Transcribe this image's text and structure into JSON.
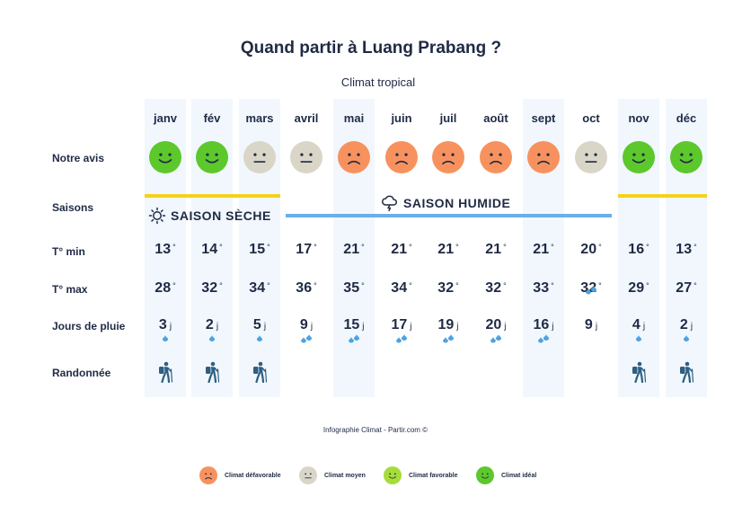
{
  "title": "Quand partir à Luang Prabang ?",
  "subtitle": "Climat tropical",
  "row_labels": {
    "avis": "Notre avis",
    "saisons": "Saisons",
    "tmin": "T° min",
    "tmax": "T° max",
    "pluie": "Jours de pluie",
    "rando": "Randonnée"
  },
  "seasons": {
    "dry": "SAISON SÈCHE",
    "wet": "SAISON HUMIDE"
  },
  "units": {
    "temp": "°",
    "days": "j"
  },
  "colors": {
    "defavorable": "#f7925e",
    "moyen": "#d9d6c8",
    "favorable": "#a6dc3a",
    "ideal": "#5cc82c",
    "dry_line": "#f4d21e",
    "wet_line": "#6aaeea",
    "drop": "#4ba3e3",
    "hiker": "#2f5f82"
  },
  "chart_data": {
    "type": "table",
    "months": [
      "janv",
      "fév",
      "mars",
      "avril",
      "mai",
      "juin",
      "juil",
      "août",
      "sept",
      "oct",
      "nov",
      "déc"
    ],
    "avis": [
      "ideal",
      "ideal",
      "moyen",
      "moyen",
      "defavorable",
      "defavorable",
      "defavorable",
      "defavorable",
      "defavorable",
      "moyen",
      "ideal",
      "ideal"
    ],
    "season": [
      "dry",
      "dry",
      "dry",
      "wet",
      "wet",
      "wet",
      "wet",
      "wet",
      "wet",
      "wet",
      "dry",
      "dry"
    ],
    "tmin": [
      13,
      14,
      15,
      17,
      21,
      21,
      21,
      21,
      21,
      20,
      16,
      13
    ],
    "tmax": [
      28,
      32,
      34,
      36,
      35,
      34,
      32,
      32,
      33,
      32,
      29,
      27
    ],
    "rain_days": [
      3,
      2,
      5,
      9,
      15,
      17,
      19,
      20,
      16,
      9,
      4,
      2
    ],
    "rain_drops": [
      1,
      1,
      1,
      2,
      2,
      2,
      2,
      2,
      2,
      2,
      1,
      1
    ],
    "randonnee": [
      true,
      true,
      true,
      false,
      false,
      false,
      false,
      false,
      false,
      false,
      true,
      true
    ]
  },
  "footer": "Infographie Climat - Partir.com ©",
  "legend": [
    {
      "key": "defavorable",
      "label": "Climat défavorable"
    },
    {
      "key": "moyen",
      "label": "Climat moyen"
    },
    {
      "key": "favorable",
      "label": "Climat favorable"
    },
    {
      "key": "ideal",
      "label": "Climat idéal"
    }
  ]
}
